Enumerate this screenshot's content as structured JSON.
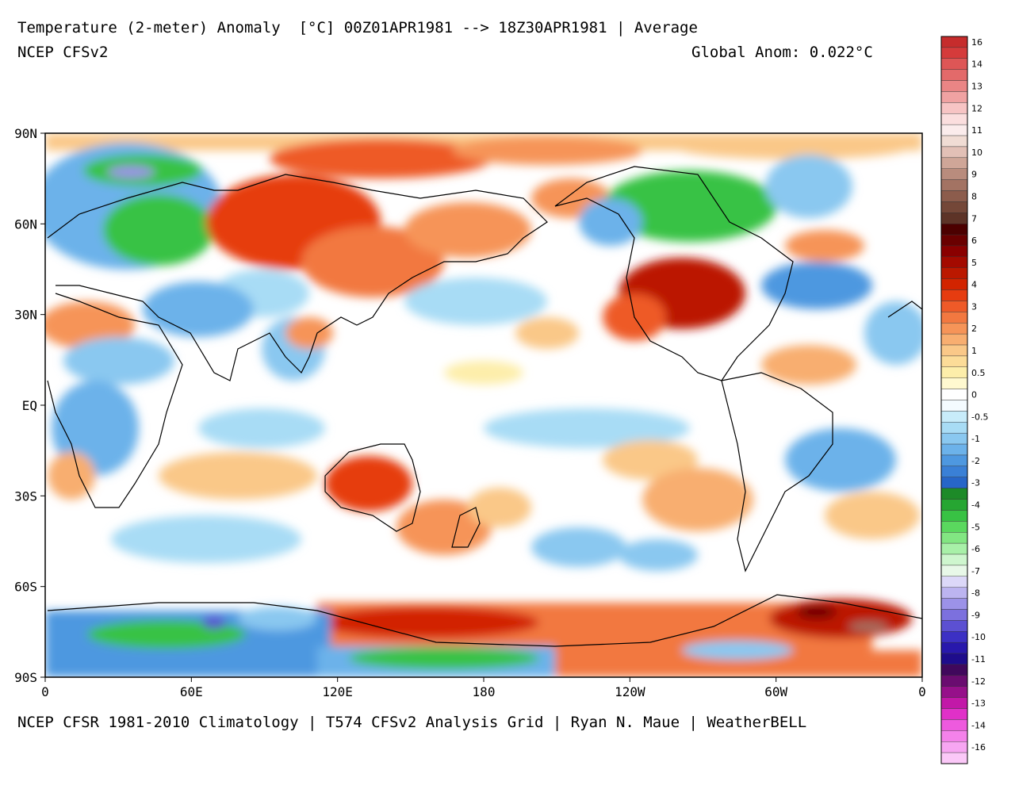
{
  "header": {
    "title": "Temperature (2-meter) Anomaly  [°C] 00Z01APR1981 --> 18Z30APR1981 | Average",
    "subtitle": "NCEP CFSv2",
    "global_anom": "Global Anom: 0.022°C"
  },
  "footer": {
    "credit": "NCEP CFSR 1981-2010 Climatology | T574 CFSv2 Analysis Grid | Ryan N. Maue | WeatherBELL"
  },
  "map": {
    "lat_labels": [
      "90N",
      "60N",
      "30N",
      "EQ",
      "30S",
      "60S",
      "90S"
    ],
    "lon_labels": [
      "0",
      "60E",
      "120E",
      "180",
      "120W",
      "60W",
      "0"
    ],
    "ocean_color": "#ffffff",
    "coast_color": "#000000"
  },
  "colorbar": {
    "entries": [
      {
        "label": "16",
        "color": "#c62c2c"
      },
      {
        "label": "",
        "color": "#d53b3b"
      },
      {
        "label": "14",
        "color": "#de5656"
      },
      {
        "label": "",
        "color": "#e36a6a"
      },
      {
        "label": "13",
        "color": "#ea8585"
      },
      {
        "label": "",
        "color": "#f0a2a2"
      },
      {
        "label": "12",
        "color": "#f7c4c4"
      },
      {
        "label": "",
        "color": "#fbdede"
      },
      {
        "label": "11",
        "color": "#fbecec"
      },
      {
        "label": "",
        "color": "#f0dcd4"
      },
      {
        "label": "10",
        "color": "#e2c0b6"
      },
      {
        "label": "",
        "color": "#cfa698"
      },
      {
        "label": "9",
        "color": "#b98c7d"
      },
      {
        "label": "",
        "color": "#a37363"
      },
      {
        "label": "8",
        "color": "#8c5c4c"
      },
      {
        "label": "",
        "color": "#744738"
      },
      {
        "label": "7",
        "color": "#5d3327"
      },
      {
        "label": "",
        "color": "#4c0000"
      },
      {
        "label": "6",
        "color": "#6a0000"
      },
      {
        "label": "",
        "color": "#8a0000"
      },
      {
        "label": "5",
        "color": "#a40a00"
      },
      {
        "label": "",
        "color": "#bb1800"
      },
      {
        "label": "4",
        "color": "#d22400"
      },
      {
        "label": "",
        "color": "#e63c10"
      },
      {
        "label": "3",
        "color": "#ee5a28"
      },
      {
        "label": "",
        "color": "#f27840"
      },
      {
        "label": "2",
        "color": "#f69458"
      },
      {
        "label": "",
        "color": "#f8ae70"
      },
      {
        "label": "1",
        "color": "#fac888"
      },
      {
        "label": "",
        "color": "#fcdc98"
      },
      {
        "label": "0.5",
        "color": "#fdeeaa"
      },
      {
        "label": "",
        "color": "#fff9d0"
      },
      {
        "label": "0",
        "color": "#ffffff"
      },
      {
        "label": "",
        "color": "#f4fbff"
      },
      {
        "label": "-0.5",
        "color": "#c8ecfa"
      },
      {
        "label": "",
        "color": "#a8dcf5"
      },
      {
        "label": "-1",
        "color": "#8ac8f0"
      },
      {
        "label": "",
        "color": "#6cb2ea"
      },
      {
        "label": "-2",
        "color": "#4e98e0"
      },
      {
        "label": "",
        "color": "#3a80d6"
      },
      {
        "label": "-3",
        "color": "#2766c8"
      },
      {
        "label": "",
        "color": "#1d8a28"
      },
      {
        "label": "-4",
        "color": "#26a632"
      },
      {
        "label": "",
        "color": "#38c244"
      },
      {
        "label": "-5",
        "color": "#5ad85e"
      },
      {
        "label": "",
        "color": "#82e682"
      },
      {
        "label": "-6",
        "color": "#a8f0a8"
      },
      {
        "label": "",
        "color": "#cef6ce"
      },
      {
        "label": "-7",
        "color": "#e8f8e8"
      },
      {
        "label": "",
        "color": "#dcd8f8"
      },
      {
        "label": "-8",
        "color": "#bcb4f0"
      },
      {
        "label": "",
        "color": "#9c92e8"
      },
      {
        "label": "-9",
        "color": "#7c70de"
      },
      {
        "label": "",
        "color": "#5c50d2"
      },
      {
        "label": "-10",
        "color": "#3c30c4"
      },
      {
        "label": "",
        "color": "#2818ac"
      },
      {
        "label": "-11",
        "color": "#1e0c8c"
      },
      {
        "label": "",
        "color": "#40085c"
      },
      {
        "label": "-12",
        "color": "#6a0c70"
      },
      {
        "label": "",
        "color": "#96108a"
      },
      {
        "label": "-13",
        "color": "#c218a8"
      },
      {
        "label": "",
        "color": "#e030c8"
      },
      {
        "label": "-14",
        "color": "#ee5ade"
      },
      {
        "label": "",
        "color": "#f482ea"
      },
      {
        "label": "-16",
        "color": "#f7a6f2"
      },
      {
        "label": "",
        "color": "#fbc8f8"
      }
    ]
  }
}
